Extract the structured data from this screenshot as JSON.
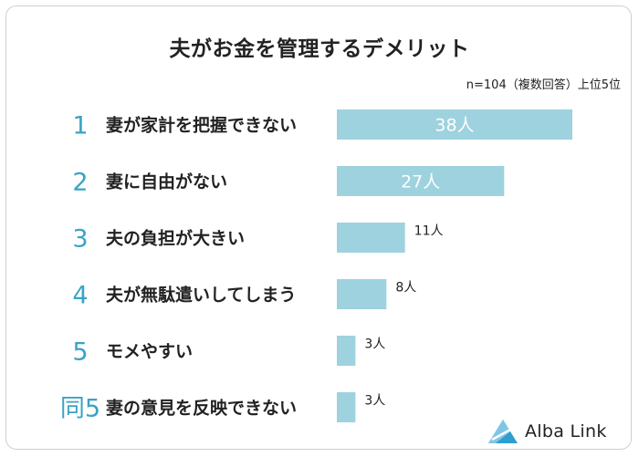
{
  "title": "夫がお金を管理するデメリット",
  "note": "n=104（複数回答）上位5位",
  "brand": {
    "name": "Alba Link"
  },
  "colors": {
    "bar": "#9ed2df",
    "rank": "#3aa3c4",
    "text": "#222222",
    "logo": "#2e9fd0"
  },
  "chart_data": {
    "type": "bar",
    "orientation": "horizontal",
    "categories": [
      "妻が家計を把握できない",
      "妻に自由がない",
      "夫の負担が大きい",
      "夫が無駄遣いしてしまう",
      "モメやすい",
      "妻の意見を反映できない"
    ],
    "ranks": [
      "1",
      "2",
      "3",
      "4",
      "5",
      "同5"
    ],
    "values": [
      38,
      27,
      11,
      8,
      3,
      3
    ],
    "value_labels": [
      "38人",
      "27人",
      "11人",
      "8人",
      "3人",
      "3人"
    ],
    "xlim": [
      0,
      38
    ]
  }
}
